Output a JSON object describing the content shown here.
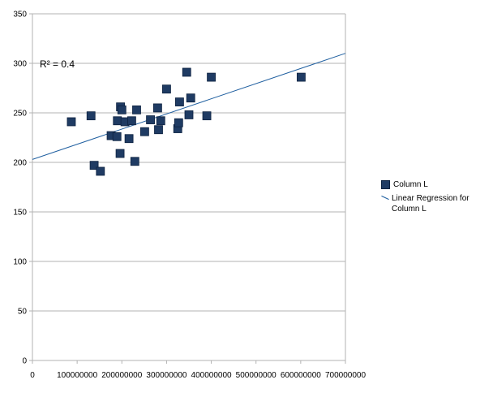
{
  "chart_data": {
    "type": "scatter",
    "title": "",
    "xlabel": "",
    "ylabel": "",
    "xlim": [
      0,
      700000000
    ],
    "ylim": [
      0,
      350
    ],
    "x_ticks": [
      0,
      100000000,
      200000000,
      300000000,
      400000000,
      500000000,
      600000000,
      700000000
    ],
    "y_ticks": [
      0,
      50,
      100,
      150,
      200,
      250,
      300,
      350
    ],
    "grid": "horizontal",
    "legend_position": "right",
    "annotation": "R² = 0.4",
    "series": [
      {
        "name": "Column L",
        "color": "#1f3b63",
        "marker": "square",
        "x": [
          87000000,
          131000000,
          138000000,
          152000000,
          176000000,
          189000000,
          190000000,
          196000000,
          197000000,
          200000000,
          207000000,
          216000000,
          222000000,
          229000000,
          233000000,
          251000000,
          264000000,
          280000000,
          282000000,
          287000000,
          300000000,
          325000000,
          327000000,
          329000000,
          345000000,
          350000000,
          354000000,
          390000000,
          400000000,
          601000000
        ],
        "y": [
          241,
          247,
          197,
          191,
          227,
          226,
          242,
          209,
          256,
          253,
          241,
          224,
          242,
          201,
          253,
          231,
          243,
          255,
          233,
          242,
          274,
          234,
          240,
          261,
          291,
          248,
          265,
          247,
          286,
          286
        ]
      }
    ],
    "regression": {
      "name": "Linear Regression for Column L",
      "color": "#1f5fa0",
      "intercept": 203,
      "slope": 1.53e-07
    }
  }
}
